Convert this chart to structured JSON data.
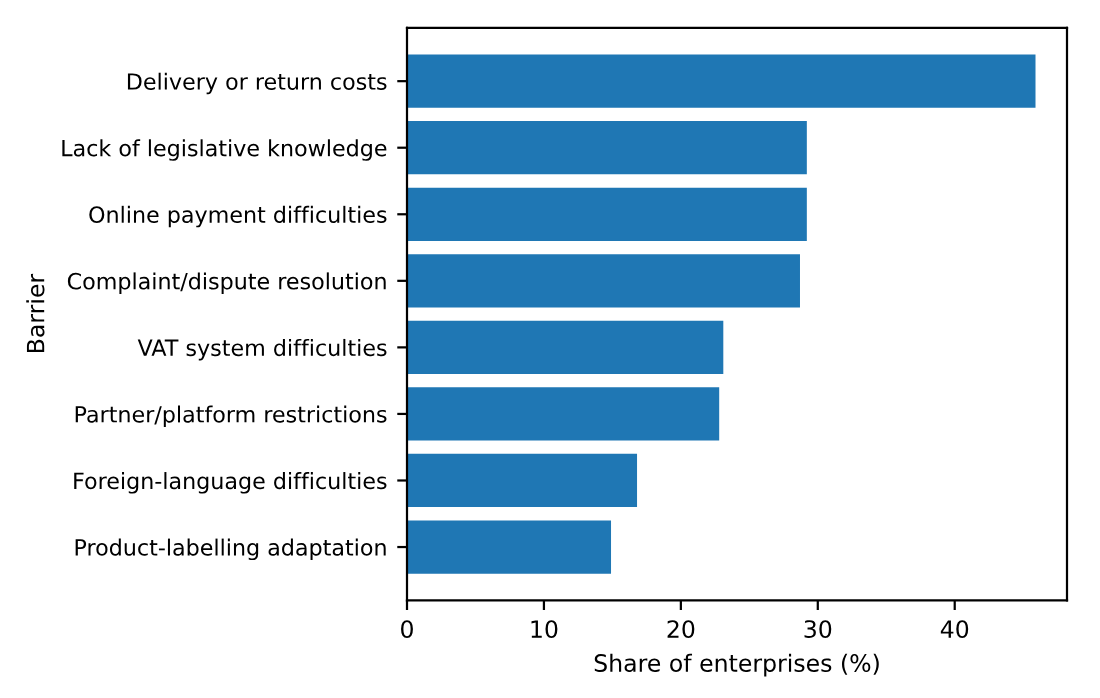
{
  "chart_data": {
    "type": "bar",
    "orientation": "horizontal",
    "xlabel": "Share of enterprises (%)",
    "ylabel": "Barrier",
    "categories": [
      "Delivery or return costs",
      "Lack of legislative knowledge",
      "Online payment difficulties",
      "Complaint/dispute resolution",
      "VAT system difficulties",
      "Partner/platform restrictions",
      "Foreign-language difficulties",
      "Product-labelling adaptation"
    ],
    "values": [
      45.9,
      29.2,
      29.2,
      28.7,
      23.1,
      22.8,
      16.8,
      14.9
    ],
    "color": "#1f77b4",
    "xlim": [
      0,
      48.2
    ],
    "xticks": [
      0,
      10,
      20,
      30,
      40
    ],
    "grid": false,
    "legend": false
  }
}
